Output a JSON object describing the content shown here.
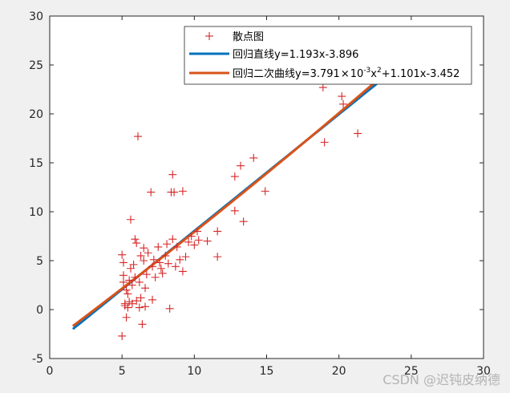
{
  "chart_data": {
    "type": "scatter",
    "title": "",
    "xlabel": "",
    "ylabel": "",
    "xlim": [
      0,
      30
    ],
    "ylim": [
      -5,
      30
    ],
    "xticks": [
      0,
      5,
      10,
      15,
      20,
      25,
      30
    ],
    "yticks": [
      -5,
      0,
      5,
      10,
      15,
      20,
      25,
      30
    ],
    "grid": false,
    "legend_position": "top-right",
    "series": [
      {
        "name": "散点图",
        "kind": "scatter",
        "marker": "+",
        "color": "#d62728",
        "points": [
          [
            5.0,
            -2.7
          ],
          [
            5.0,
            5.6
          ],
          [
            5.1,
            4.8
          ],
          [
            5.1,
            3.5
          ],
          [
            5.1,
            2.8
          ],
          [
            5.2,
            0.6
          ],
          [
            5.2,
            0.4
          ],
          [
            5.3,
            -0.8
          ],
          [
            5.3,
            2.0
          ],
          [
            5.4,
            1.6
          ],
          [
            5.4,
            0.2
          ],
          [
            5.5,
            0.8
          ],
          [
            5.5,
            3.0
          ],
          [
            5.6,
            9.2
          ],
          [
            5.6,
            4.2
          ],
          [
            5.7,
            0.6
          ],
          [
            5.7,
            2.5
          ],
          [
            5.8,
            4.6
          ],
          [
            5.9,
            7.2
          ],
          [
            5.9,
            3.3
          ],
          [
            6.0,
            0.9
          ],
          [
            6.0,
            6.8
          ],
          [
            6.1,
            17.7
          ],
          [
            6.2,
            2.8
          ],
          [
            6.2,
            0.2
          ],
          [
            6.3,
            5.5
          ],
          [
            6.3,
            1.2
          ],
          [
            6.4,
            -1.5
          ],
          [
            6.5,
            5.0
          ],
          [
            6.5,
            6.3
          ],
          [
            6.6,
            0.3
          ],
          [
            6.6,
            2.2
          ],
          [
            6.7,
            3.6
          ],
          [
            6.8,
            5.8
          ],
          [
            7.0,
            12.0
          ],
          [
            7.1,
            1.0
          ],
          [
            7.1,
            4.4
          ],
          [
            7.2,
            5.1
          ],
          [
            7.3,
            3.3
          ],
          [
            7.5,
            6.4
          ],
          [
            7.6,
            4.8
          ],
          [
            7.7,
            4.2
          ],
          [
            7.8,
            3.7
          ],
          [
            8.0,
            5.5
          ],
          [
            8.1,
            6.7
          ],
          [
            8.2,
            4.7
          ],
          [
            8.3,
            0.1
          ],
          [
            8.4,
            12.0
          ],
          [
            8.5,
            7.2
          ],
          [
            8.5,
            13.8
          ],
          [
            8.6,
            12.0
          ],
          [
            8.7,
            4.4
          ],
          [
            8.8,
            6.4
          ],
          [
            9.0,
            5.1
          ],
          [
            9.2,
            12.1
          ],
          [
            9.2,
            3.9
          ],
          [
            9.4,
            5.4
          ],
          [
            9.6,
            6.9
          ],
          [
            9.8,
            7.5
          ],
          [
            10.0,
            6.6
          ],
          [
            10.2,
            8.0
          ],
          [
            10.3,
            7.1
          ],
          [
            10.9,
            7.0
          ],
          [
            11.6,
            8.0
          ],
          [
            11.6,
            5.4
          ],
          [
            12.8,
            13.6
          ],
          [
            12.8,
            10.1
          ],
          [
            13.2,
            14.7
          ],
          [
            13.4,
            9.0
          ],
          [
            14.1,
            15.5
          ],
          [
            14.9,
            12.1
          ],
          [
            18.9,
            22.7
          ],
          [
            19.0,
            17.1
          ],
          [
            20.2,
            21.8
          ],
          [
            20.3,
            21.0
          ],
          [
            21.3,
            18.0
          ]
        ]
      },
      {
        "name": "回归直线y=1.193x-3.896",
        "kind": "line",
        "color": "#0072bd",
        "x_range": [
          1.6,
          22.8
        ],
        "slope": 1.193,
        "intercept": -3.896
      },
      {
        "name": "回归二次曲线y=3.791×10⁻³x²+1.101x-3.452",
        "kind": "line",
        "color": "#d95319",
        "x_range": [
          1.6,
          22.8
        ],
        "a2": 0.003791,
        "a1": 1.101,
        "a0": -3.452
      }
    ],
    "legend": {
      "entries": [
        {
          "label": "散点图"
        },
        {
          "label": "回归直线y=1.193x-3.896"
        },
        {
          "label_main": "回归二次曲线y=3.791",
          "label_times": "×",
          "label_ten": "10",
          "label_exp": "-3",
          "label_x": "x",
          "label_sq": "2",
          "label_tail": "+1.101x-3.452"
        }
      ]
    }
  },
  "watermark": "CSDN @迟钝皮纳德"
}
